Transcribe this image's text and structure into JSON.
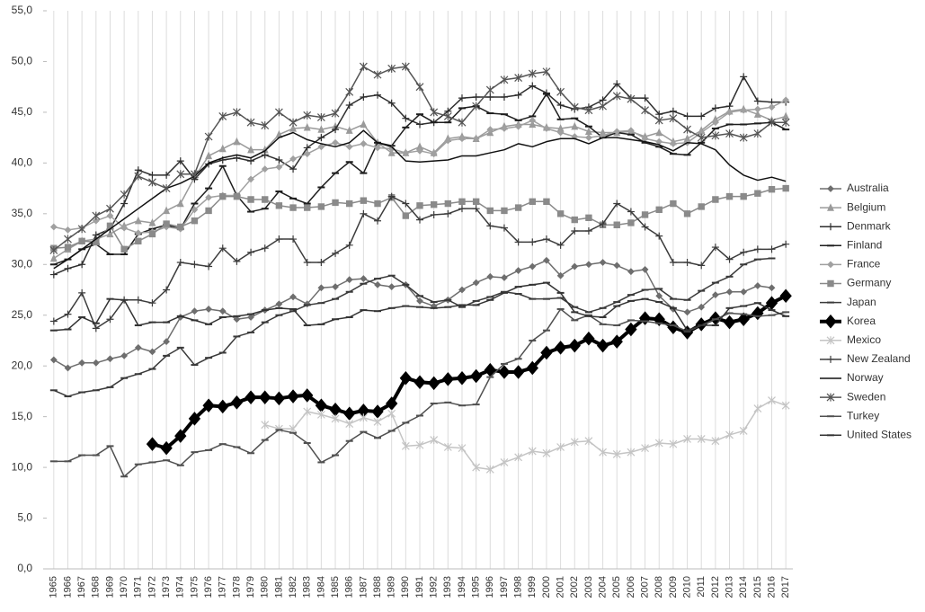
{
  "chart_data": {
    "type": "line",
    "categories": [
      "1965",
      "1966",
      "1967",
      "1968",
      "1969",
      "1970",
      "1971",
      "1972",
      "1973",
      "1974",
      "1975",
      "1976",
      "1977",
      "1978",
      "1979",
      "1980",
      "1981",
      "1982",
      "1983",
      "1984",
      "1985",
      "1986",
      "1987",
      "1988",
      "1989",
      "1990",
      "1991",
      "1992",
      "1993",
      "1994",
      "1995",
      "1996",
      "1997",
      "1998",
      "1999",
      "2000",
      "2001",
      "2002",
      "2003",
      "2004",
      "2005",
      "2006",
      "2007",
      "2008",
      "2009",
      "2010",
      "2011",
      "2012",
      "2013",
      "2014",
      "2015",
      "2016",
      "2017"
    ],
    "ylim": [
      0,
      55
    ],
    "yticks": [
      {
        "value": 0,
        "label": "0,0"
      },
      {
        "value": 5,
        "label": "5,0"
      },
      {
        "value": 10,
        "label": "10,0"
      },
      {
        "value": 15,
        "label": "15,0"
      },
      {
        "value": 20,
        "label": "20,0"
      },
      {
        "value": 25,
        "label": "25,0"
      },
      {
        "value": 30,
        "label": "30,0"
      },
      {
        "value": 35,
        "label": "35,0"
      },
      {
        "value": 40,
        "label": "40,0"
      },
      {
        "value": 45,
        "label": "45,0"
      },
      {
        "value": 50,
        "label": "50,0"
      },
      {
        "value": 55,
        "label": "55,0"
      }
    ],
    "grid": "vertical",
    "legend": "right",
    "series": [
      {
        "name": "Australia",
        "color": "#6e6e6e",
        "marker": "diamond",
        "values": [
          20.6,
          19.8,
          20.3,
          20.3,
          20.7,
          21.0,
          21.8,
          21.4,
          22.4,
          24.8,
          25.4,
          25.6,
          25.4,
          24.6,
          24.8,
          25.5,
          26.1,
          26.8,
          26.1,
          27.7,
          27.8,
          28.5,
          28.6,
          28.0,
          27.8,
          28.0,
          26.4,
          25.9,
          26.5,
          27.5,
          28.2,
          28.8,
          28.7,
          29.4,
          29.8,
          30.4,
          28.9,
          29.8,
          30.0,
          30.2,
          29.9,
          29.3,
          29.5,
          26.9,
          25.6,
          25.3,
          25.8,
          27.0,
          27.3,
          27.3,
          27.9,
          27.7,
          null
        ]
      },
      {
        "name": "Belgium",
        "color": "#9a9a9a",
        "marker": "triangle",
        "values": [
          30.6,
          31.5,
          32.3,
          32.5,
          33.0,
          33.8,
          34.3,
          34.1,
          35.3,
          36.0,
          38.6,
          40.7,
          41.4,
          42.1,
          41.3,
          41.3,
          42.8,
          43.4,
          43.5,
          43.3,
          43.6,
          43.2,
          43.8,
          42.0,
          41.0,
          41.0,
          41.6,
          41.0,
          42.4,
          42.6,
          42.4,
          43.0,
          43.6,
          43.8,
          43.8,
          43.5,
          43.4,
          43.6,
          43.1,
          43.0,
          43.0,
          43.1,
          42.6,
          43.0,
          42.1,
          42.4,
          43.2,
          44.3,
          45.1,
          45.3,
          44.8,
          44.2,
          44.6
        ]
      },
      {
        "name": "Denmark",
        "color": "#2e2e2e",
        "marker": "plus",
        "values": [
          29.0,
          29.6,
          30.0,
          32.9,
          33.5,
          36.0,
          39.3,
          38.8,
          38.8,
          40.2,
          38.4,
          39.9,
          40.3,
          40.5,
          40.2,
          40.8,
          40.3,
          39.4,
          41.5,
          42.5,
          43.3,
          45.7,
          46.5,
          46.7,
          45.9,
          44.4,
          43.8,
          44.0,
          45.1,
          46.4,
          46.5,
          46.5,
          46.5,
          46.7,
          47.6,
          46.9,
          45.7,
          45.3,
          45.5,
          46.2,
          47.8,
          46.4,
          46.4,
          44.8,
          45.1,
          44.6,
          44.6,
          45.4,
          45.6,
          48.5,
          46.1,
          46.0,
          46.0
        ]
      },
      {
        "name": "Finland",
        "color": "#1e1e1e",
        "marker": "dash",
        "values": [
          30.0,
          30.5,
          31.5,
          32.0,
          31.0,
          31.0,
          33.0,
          33.5,
          33.9,
          33.5,
          36.0,
          37.5,
          39.7,
          36.8,
          35.2,
          35.5,
          37.2,
          36.5,
          36.0,
          37.6,
          39.0,
          40.1,
          39.0,
          42.0,
          41.7,
          43.5,
          44.8,
          44.0,
          44.0,
          45.4,
          45.6,
          44.9,
          44.8,
          44.2,
          44.6,
          46.8,
          44.3,
          44.4,
          43.6,
          42.5,
          43.0,
          42.8,
          42.0,
          41.6,
          40.9,
          40.8,
          42.0,
          43.4,
          43.8,
          43.8,
          43.9,
          44.0,
          43.3
        ]
      },
      {
        "name": "France",
        "color": "#a0a0a0",
        "marker": "diamond",
        "values": [
          33.7,
          33.4,
          33.6,
          34.3,
          34.8,
          33.6,
          33.1,
          33.2,
          33.7,
          33.5,
          35.4,
          36.6,
          36.8,
          36.8,
          38.4,
          39.4,
          39.6,
          40.4,
          40.9,
          41.6,
          42.0,
          41.6,
          41.9,
          41.5,
          41.4,
          41.0,
          41.2,
          40.9,
          42.2,
          42.4,
          42.4,
          43.3,
          43.4,
          43.6,
          44.2,
          43.4,
          43.0,
          42.6,
          42.5,
          42.7,
          43.1,
          43.2,
          42.4,
          42.1,
          41.9,
          42.0,
          43.0,
          44.0,
          45.0,
          45.2,
          45.3,
          45.5,
          46.2
        ]
      },
      {
        "name": "Germany",
        "color": "#8a8a8a",
        "marker": "square",
        "values": [
          31.6,
          31.7,
          32.3,
          32.2,
          33.8,
          31.5,
          32.3,
          33.0,
          34.0,
          33.7,
          34.3,
          35.3,
          36.7,
          36.7,
          36.4,
          36.4,
          35.8,
          35.6,
          35.6,
          35.7,
          36.1,
          36.0,
          36.3,
          36.0,
          36.6,
          34.8,
          35.8,
          35.9,
          36.0,
          36.2,
          36.2,
          35.3,
          35.3,
          35.6,
          36.2,
          36.2,
          35.0,
          34.4,
          34.6,
          33.9,
          33.9,
          34.1,
          34.9,
          35.4,
          36.0,
          35.0,
          35.7,
          36.4,
          36.7,
          36.7,
          37.0,
          37.4,
          37.5
        ]
      },
      {
        "name": "Japan",
        "color": "#3a3a3a",
        "marker": "dash",
        "values": [
          17.6,
          17.0,
          17.4,
          17.6,
          17.9,
          18.8,
          19.2,
          19.7,
          21.0,
          21.8,
          20.1,
          20.8,
          21.3,
          22.9,
          23.3,
          24.3,
          25.0,
          25.4,
          26.0,
          26.2,
          26.6,
          27.3,
          28.1,
          28.6,
          28.9,
          28.0,
          26.9,
          26.3,
          26.5,
          25.8,
          26.4,
          26.8,
          27.3,
          27.1,
          26.6,
          26.6,
          26.7,
          25.8,
          25.3,
          25.7,
          26.3,
          27.0,
          27.5,
          27.6,
          26.6,
          26.5,
          27.4,
          28.2,
          28.8,
          30.0,
          30.5,
          30.6,
          null
        ]
      },
      {
        "name": "Korea",
        "color": "#000000",
        "marker": "bigdiamond",
        "values": [
          null,
          null,
          null,
          null,
          null,
          null,
          null,
          12.3,
          11.9,
          13.1,
          14.8,
          16.1,
          16.0,
          16.4,
          16.9,
          16.9,
          16.8,
          17.0,
          17.1,
          16.1,
          15.7,
          15.3,
          15.6,
          15.5,
          16.3,
          18.8,
          18.4,
          18.3,
          18.7,
          18.8,
          19.0,
          19.6,
          19.4,
          19.4,
          19.8,
          21.3,
          21.8,
          22.0,
          22.7,
          22.0,
          22.4,
          23.6,
          24.7,
          24.6,
          23.8,
          23.3,
          24.1,
          24.7,
          24.3,
          24.6,
          25.2,
          26.2,
          26.9
        ]
      },
      {
        "name": "Mexico",
        "color": "#c4c4c4",
        "marker": "asterisk",
        "values": [
          null,
          null,
          null,
          null,
          null,
          null,
          null,
          null,
          null,
          null,
          null,
          null,
          null,
          null,
          null,
          14.2,
          13.8,
          13.8,
          15.5,
          15.2,
          14.8,
          14.3,
          14.9,
          14.5,
          15.3,
          12.1,
          12.2,
          12.7,
          12.0,
          11.9,
          10.0,
          9.8,
          10.5,
          11.0,
          11.6,
          11.4,
          12.0,
          12.5,
          12.6,
          11.5,
          11.3,
          11.5,
          11.9,
          12.4,
          12.3,
          12.8,
          12.8,
          12.6,
          13.2,
          13.6,
          15.8,
          16.6,
          16.1
        ]
      },
      {
        "name": "New Zealand",
        "color": "#3c3c3c",
        "marker": "plus",
        "values": [
          24.4,
          25.1,
          27.2,
          23.7,
          24.6,
          26.5,
          26.5,
          26.2,
          27.5,
          30.2,
          30.0,
          29.8,
          31.6,
          30.3,
          31.2,
          31.6,
          32.5,
          32.5,
          30.2,
          30.2,
          31.1,
          31.9,
          35.0,
          34.3,
          36.7,
          36.0,
          34.4,
          34.9,
          35.0,
          35.5,
          35.5,
          33.8,
          33.6,
          32.2,
          32.2,
          32.5,
          31.9,
          33.3,
          33.3,
          34.0,
          36.0,
          35.2,
          33.7,
          32.8,
          30.2,
          30.2,
          29.9,
          31.7,
          30.5,
          31.2,
          31.5,
          31.5,
          32.0
        ]
      },
      {
        "name": "Norway",
        "color": "#111111",
        "marker": "none",
        "values": [
          29.6,
          30.5,
          31.5,
          32.5,
          33.5,
          34.5,
          35.5,
          36.5,
          37.5,
          38.0,
          38.7,
          40.0,
          40.5,
          40.8,
          40.5,
          41.2,
          42.5,
          43.0,
          42.3,
          41.9,
          41.6,
          42.0,
          43.2,
          42.0,
          41.6,
          40.2,
          40.1,
          40.2,
          40.3,
          40.7,
          40.7,
          41.0,
          41.3,
          41.9,
          41.6,
          42.1,
          42.4,
          42.4,
          41.9,
          42.5,
          42.5,
          42.3,
          42.1,
          41.8,
          41.2,
          42.0,
          41.9,
          41.3,
          39.8,
          38.8,
          38.3,
          38.6,
          38.2
        ]
      },
      {
        "name": "Sweden",
        "color": "#555555",
        "marker": "asterisk",
        "values": [
          31.4,
          32.5,
          33.5,
          34.8,
          35.5,
          36.9,
          38.7,
          38.1,
          37.5,
          38.9,
          38.9,
          42.6,
          44.6,
          45.0,
          44.0,
          43.7,
          45.0,
          44.0,
          44.7,
          44.5,
          44.9,
          47.0,
          49.5,
          48.7,
          49.3,
          49.5,
          47.5,
          45.0,
          44.6,
          44.0,
          45.6,
          47.2,
          48.2,
          48.4,
          48.8,
          49.0,
          47.0,
          45.5,
          45.2,
          45.6,
          46.6,
          46.3,
          45.2,
          44.2,
          44.4,
          43.3,
          42.5,
          42.7,
          42.9,
          42.5,
          42.9,
          44.0,
          44.0
        ]
      },
      {
        "name": "Turkey",
        "color": "#505050",
        "marker": "dash",
        "values": [
          10.6,
          10.6,
          11.2,
          11.2,
          12.1,
          9.1,
          10.3,
          10.5,
          10.7,
          10.2,
          11.5,
          11.7,
          12.3,
          12.0,
          11.4,
          12.7,
          13.7,
          13.4,
          12.4,
          10.5,
          11.2,
          12.6,
          13.5,
          12.9,
          13.6,
          14.4,
          15.1,
          16.3,
          16.4,
          16.1,
          16.2,
          18.9,
          20.2,
          20.7,
          22.5,
          23.5,
          25.6,
          24.5,
          25.0,
          24.1,
          24.0,
          24.5,
          24.4,
          24.2,
          24.0,
          23.4,
          24.0,
          24.6,
          25.2,
          25.1,
          24.9,
          25.0,
          25.3
        ]
      },
      {
        "name": "United States",
        "color": "#333333",
        "marker": "dash",
        "values": [
          23.5,
          23.6,
          24.8,
          24.2,
          26.6,
          26.5,
          24.0,
          24.3,
          24.3,
          24.9,
          24.5,
          24.1,
          24.8,
          24.9,
          25.1,
          25.5,
          25.7,
          25.6,
          24.0,
          24.1,
          24.6,
          24.8,
          25.5,
          25.4,
          25.7,
          25.9,
          25.8,
          25.7,
          25.8,
          26.0,
          26.0,
          26.5,
          27.2,
          27.8,
          28.0,
          28.2,
          27.2,
          25.3,
          24.9,
          24.8,
          25.9,
          26.4,
          26.6,
          26.3,
          25.7,
          23.5,
          24.0,
          24.0,
          25.7,
          25.9,
          26.2,
          25.5,
          24.9
        ]
      }
    ]
  }
}
